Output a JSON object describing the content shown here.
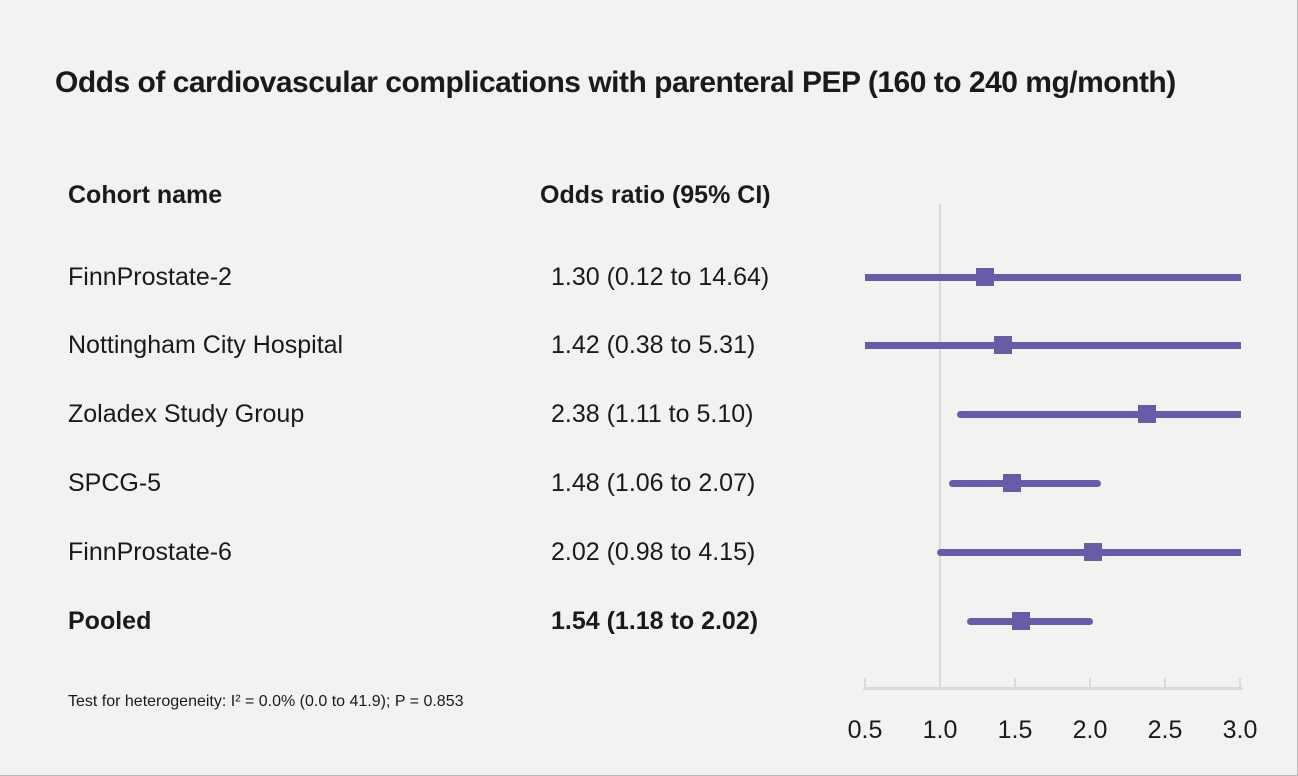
{
  "title": "Odds of cardiovascular complications with parenteral PEP (160 to 240 mg/month)",
  "colors": {
    "background": "#f2f2f1",
    "text": "#1a1a1a",
    "purple": "#685ca6",
    "axis_gray": "#d6dae1"
  },
  "chart_data": {
    "type": "forest",
    "title": "Odds of cardiovascular complications with parenteral PEP (160 to 240 mg/month)",
    "columns": [
      "Cohort name",
      "Odds ratio (95% CI)"
    ],
    "x_axis": {
      "tick_labels": [
        "0.5",
        "1.0",
        "1.5",
        "2.0",
        "2.5",
        "3.0"
      ],
      "tick_values": [
        0.5,
        1.0,
        1.5,
        2.0,
        2.5,
        3.0
      ],
      "xlim": [
        0.5,
        3.0
      ],
      "reference_line": 1.0,
      "scale": "linear"
    },
    "rows": [
      {
        "label": "FinnProstate-2",
        "or": 1.3,
        "ci_low": 0.12,
        "ci_high": 14.64,
        "or_text": "1.30 (0.12 to 14.64)",
        "bold": false
      },
      {
        "label": "Nottingham City Hospital",
        "or": 1.42,
        "ci_low": 0.38,
        "ci_high": 5.31,
        "or_text": "1.42 (0.38 to 5.31)",
        "bold": false
      },
      {
        "label": "Zoladex Study Group",
        "or": 2.38,
        "ci_low": 1.11,
        "ci_high": 5.1,
        "or_text": "2.38 (1.11 to 5.10)",
        "bold": false
      },
      {
        "label": "SPCG-5",
        "or": 1.48,
        "ci_low": 1.06,
        "ci_high": 2.07,
        "or_text": "1.48 (1.06 to 2.07)",
        "bold": false
      },
      {
        "label": "FinnProstate-6",
        "or": 2.02,
        "ci_low": 0.98,
        "ci_high": 4.15,
        "or_text": "2.02 (0.98 to 4.15)",
        "bold": false
      },
      {
        "label": "Pooled",
        "or": 1.54,
        "ci_low": 1.18,
        "ci_high": 2.02,
        "or_text": "1.54 (1.18 to 2.02)",
        "bold": true
      }
    ],
    "footnote": "Test for heterogeneity: I² = 0.0% (0.0 to 41.9); P = 0.853"
  }
}
